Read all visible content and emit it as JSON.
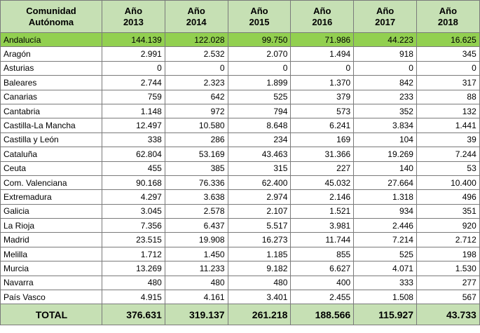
{
  "table": {
    "headers": [
      {
        "line1": "Comunidad",
        "line2": "Autónoma"
      },
      {
        "line1": "Año",
        "line2": "2013"
      },
      {
        "line1": "Año",
        "line2": "2014"
      },
      {
        "line1": "Año",
        "line2": "2015"
      },
      {
        "line1": "Año",
        "line2": "2016"
      },
      {
        "line1": "Año",
        "line2": "2017"
      },
      {
        "line1": "Año",
        "line2": "2018"
      }
    ],
    "rows": [
      {
        "name": "Andalucía",
        "values": [
          "144.139",
          "122.028",
          "99.750",
          "71.986",
          "44.223",
          "16.625"
        ]
      },
      {
        "name": "Aragón",
        "values": [
          "2.991",
          "2.532",
          "2.070",
          "1.494",
          "918",
          "345"
        ]
      },
      {
        "name": "Asturias",
        "values": [
          "0",
          "0",
          "0",
          "0",
          "0",
          "0"
        ]
      },
      {
        "name": "Baleares",
        "values": [
          "2.744",
          "2.323",
          "1.899",
          "1.370",
          "842",
          "317"
        ]
      },
      {
        "name": "Canarias",
        "values": [
          "759",
          "642",
          "525",
          "379",
          "233",
          "88"
        ]
      },
      {
        "name": "Cantabria",
        "values": [
          "1.148",
          "972",
          "794",
          "573",
          "352",
          "132"
        ]
      },
      {
        "name": "Castilla-La Mancha",
        "values": [
          "12.497",
          "10.580",
          "8.648",
          "6.241",
          "3.834",
          "1.441"
        ]
      },
      {
        "name": "Castilla y León",
        "values": [
          "338",
          "286",
          "234",
          "169",
          "104",
          "39"
        ]
      },
      {
        "name": "Cataluña",
        "values": [
          "62.804",
          "53.169",
          "43.463",
          "31.366",
          "19.269",
          "7.244"
        ]
      },
      {
        "name": "Ceuta",
        "values": [
          "455",
          "385",
          "315",
          "227",
          "140",
          "53"
        ]
      },
      {
        "name": "Com. Valenciana",
        "values": [
          "90.168",
          "76.336",
          "62.400",
          "45.032",
          "27.664",
          "10.400"
        ]
      },
      {
        "name": "Extremadura",
        "values": [
          "4.297",
          "3.638",
          "2.974",
          "2.146",
          "1.318",
          "496"
        ]
      },
      {
        "name": "Galicia",
        "values": [
          "3.045",
          "2.578",
          "2.107",
          "1.521",
          "934",
          "351"
        ]
      },
      {
        "name": "La Rioja",
        "values": [
          "7.356",
          "6.437",
          "5.517",
          "3.981",
          "2.446",
          "920"
        ]
      },
      {
        "name": "Madrid",
        "values": [
          "23.515",
          "19.908",
          "16.273",
          "11.744",
          "7.214",
          "2.712"
        ]
      },
      {
        "name": "Melilla",
        "values": [
          "1.712",
          "1.450",
          "1.185",
          "855",
          "525",
          "198"
        ]
      },
      {
        "name": "Murcia",
        "values": [
          "13.269",
          "11.233",
          "9.182",
          "6.627",
          "4.071",
          "1.530"
        ]
      },
      {
        "name": "Navarra",
        "values": [
          "480",
          "480",
          "480",
          "400",
          "333",
          "277"
        ]
      },
      {
        "name": "País Vasco",
        "values": [
          "4.915",
          "4.161",
          "3.401",
          "2.455",
          "1.508",
          "567"
        ]
      }
    ],
    "total": {
      "name": "TOTAL",
      "values": [
        "376.631",
        "319.137",
        "261.218",
        "188.566",
        "115.927",
        "43.733"
      ]
    },
    "highlight_row": "Andalucía",
    "colors": {
      "header_bg": "#c6e0b4",
      "highlight_bg": "#92d050",
      "border": "#7a7a7a"
    }
  }
}
